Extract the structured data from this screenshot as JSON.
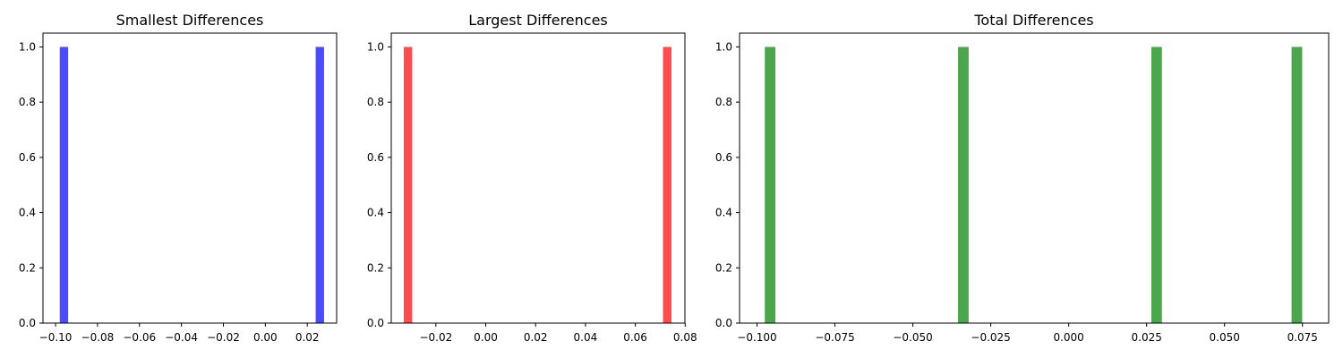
{
  "chart_data": [
    {
      "type": "bar",
      "title": "Smallest Differences",
      "xlabel": "",
      "ylabel": "",
      "xlim": [
        -0.106,
        0.034
      ],
      "ylim": [
        0,
        1.05
      ],
      "bin_width": 0.004,
      "x": [
        -0.096,
        0.026
      ],
      "values": [
        1,
        1
      ],
      "color": "#4c4cff",
      "xticks": [
        -0.1,
        -0.08,
        -0.06,
        -0.04,
        -0.02,
        0.0,
        0.02
      ],
      "xtick_labels": [
        "−0.10",
        "−0.08",
        "−0.06",
        "−0.04",
        "−0.02",
        "0.00",
        "0.02"
      ],
      "yticks": [
        0.0,
        0.2,
        0.4,
        0.6,
        0.8,
        1.0
      ],
      "ytick_labels": [
        "0.0",
        "0.2",
        "0.4",
        "0.6",
        "0.8",
        "1.0"
      ]
    },
    {
      "type": "bar",
      "title": "Largest Differences",
      "xlabel": "",
      "ylabel": "",
      "xlim": [
        -0.0379,
        0.0799
      ],
      "ylim": [
        0,
        1.05
      ],
      "bin_width": 0.0034,
      "x": [
        -0.0312,
        0.0728
      ],
      "values": [
        1,
        1
      ],
      "color": "#ff4c4c",
      "xticks": [
        -0.02,
        0.0,
        0.02,
        0.04,
        0.06,
        0.08
      ],
      "xtick_labels": [
        "−0.02",
        "0.00",
        "0.02",
        "0.04",
        "0.06",
        "0.08"
      ],
      "yticks": [
        0.0,
        0.2,
        0.4,
        0.6,
        0.8,
        1.0
      ],
      "ytick_labels": [
        "0.0",
        "0.2",
        "0.4",
        "0.6",
        "0.8",
        "1.0"
      ]
    },
    {
      "type": "bar",
      "title": "Total Differences",
      "xlabel": "",
      "ylabel": "",
      "xlim": [
        -0.1056,
        0.0834
      ],
      "ylim": [
        0,
        1.05
      ],
      "bin_width": 0.0034,
      "x": [
        -0.0958,
        -0.0338,
        0.0282,
        0.0732
      ],
      "values": [
        1,
        1,
        1,
        1
      ],
      "color": "#4ca64c",
      "xticks": [
        -0.1,
        -0.075,
        -0.05,
        -0.025,
        0.0,
        0.025,
        0.05,
        0.075
      ],
      "xtick_labels": [
        "−0.100",
        "−0.075",
        "−0.050",
        "−0.025",
        "0.000",
        "0.025",
        "0.050",
        "0.075"
      ],
      "yticks": [
        0.0,
        0.2,
        0.4,
        0.6,
        0.8,
        1.0
      ],
      "ytick_labels": [
        "0.0",
        "0.2",
        "0.4",
        "0.6",
        "0.8",
        "1.0"
      ]
    }
  ]
}
